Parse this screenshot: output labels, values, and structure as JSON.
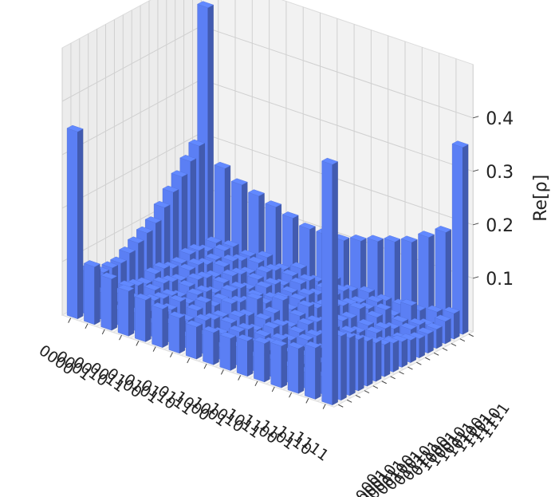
{
  "chart_data": {
    "type": "bar3d",
    "title": "",
    "zlabel": "Re[ρ]",
    "zlim": [
      0,
      0.5
    ],
    "z_ticks": [
      "0.1",
      "0.2",
      "0.3",
      "0.4"
    ],
    "x_categories": [
      "0000",
      "0001",
      "0010",
      "0011",
      "0100",
      "0101",
      "0110",
      "0111",
      "1000",
      "1001",
      "1010",
      "1011",
      "1100",
      "1101",
      "1110",
      "1111"
    ],
    "y_categories": [
      "0000",
      "0001",
      "0010",
      "0011",
      "0100",
      "0101",
      "0110",
      "0111",
      "1000",
      "1001",
      "1010",
      "1011",
      "1100",
      "1101",
      "1110",
      "1111"
    ],
    "diagonal_values": [
      0.35,
      0.05,
      0.04,
      0.04,
      0.04,
      0.04,
      0.04,
      0.05,
      0.05,
      0.04,
      0.04,
      0.04,
      0.04,
      0.05,
      0.04,
      0.35
    ],
    "corner_values": {
      "0000,1111": 0.45,
      "1111,0000": 0.45
    },
    "edge_values_x0": [
      0.35,
      0.08,
      0.07,
      0.06,
      0.06,
      0.06,
      0.07,
      0.08,
      0.09,
      0.1,
      0.12,
      0.14,
      0.16,
      0.18,
      0.2,
      0.45
    ],
    "edge_values_y15": [
      0.45,
      0.16,
      0.14,
      0.13,
      0.12,
      0.11,
      0.1,
      0.1,
      0.1,
      0.11,
      0.12,
      0.13,
      0.14,
      0.16,
      0.18,
      0.35
    ],
    "background_level": 0.02,
    "bar_color": "#5b7ff4",
    "pane_color": "#f2f2f2",
    "grid": true
  }
}
